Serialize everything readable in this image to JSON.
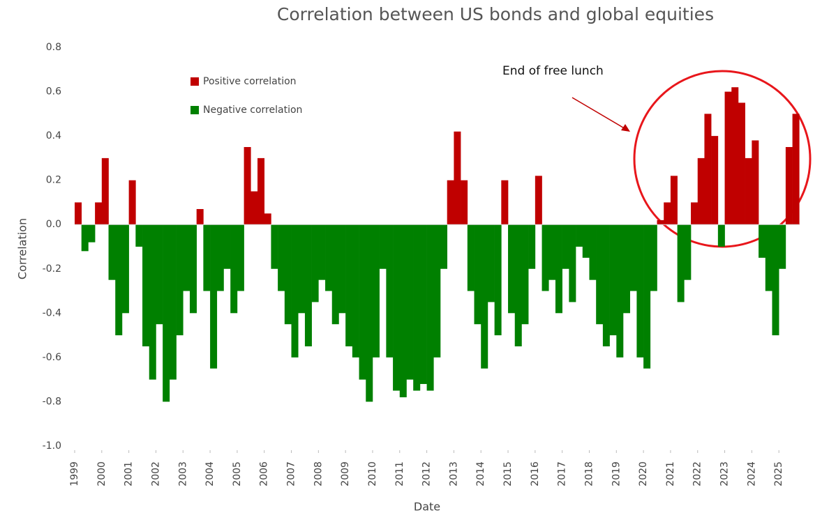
{
  "chart_data": {
    "type": "area",
    "title": "Correlation between US bonds and global equities",
    "x_label": "Date",
    "y_label": "Correlation",
    "annotation": "End of free lunch",
    "legend": [
      {
        "name": "Positive correlation",
        "color": "#c00000"
      },
      {
        "name": "Negative correlation",
        "color": "#008000"
      }
    ],
    "x": [
      1999.0,
      1999.25,
      1999.5,
      1999.75,
      2000.0,
      2000.25,
      2000.5,
      2000.75,
      2001.0,
      2001.25,
      2001.5,
      2001.75,
      2002.0,
      2002.25,
      2002.5,
      2002.75,
      2003.0,
      2003.25,
      2003.5,
      2003.75,
      2004.0,
      2004.25,
      2004.5,
      2004.75,
      2005.0,
      2005.25,
      2005.5,
      2005.75,
      2006.0,
      2006.25,
      2006.5,
      2006.75,
      2007.0,
      2007.25,
      2007.5,
      2007.75,
      2008.0,
      2008.25,
      2008.5,
      2008.75,
      2009.0,
      2009.25,
      2009.5,
      2009.75,
      2010.0,
      2010.25,
      2010.5,
      2010.75,
      2011.0,
      2011.25,
      2011.5,
      2011.75,
      2012.0,
      2012.25,
      2012.5,
      2012.75,
      2013.0,
      2013.25,
      2013.5,
      2013.75,
      2014.0,
      2014.25,
      2014.5,
      2014.75,
      2015.0,
      2015.25,
      2015.5,
      2015.75,
      2016.0,
      2016.25,
      2016.5,
      2016.75,
      2017.0,
      2017.25,
      2017.5,
      2017.75,
      2018.0,
      2018.25,
      2018.5,
      2018.75,
      2019.0,
      2019.25,
      2019.5,
      2019.75,
      2020.0,
      2020.25,
      2020.5,
      2020.75,
      2021.0,
      2021.25,
      2021.5,
      2021.75,
      2022.0,
      2022.25,
      2022.5,
      2022.75,
      2023.0,
      2023.25,
      2023.5,
      2023.75,
      2024.0,
      2024.25,
      2024.5,
      2024.75,
      2025.0,
      2025.25,
      2025.5
    ],
    "values": [
      0.1,
      -0.12,
      -0.08,
      0.1,
      0.3,
      -0.25,
      -0.5,
      -0.4,
      0.2,
      -0.1,
      -0.55,
      -0.7,
      -0.45,
      -0.8,
      -0.7,
      -0.5,
      -0.3,
      -0.4,
      0.07,
      -0.3,
      -0.65,
      -0.3,
      -0.2,
      -0.4,
      -0.3,
      0.35,
      0.15,
      0.3,
      0.05,
      -0.2,
      -0.3,
      -0.45,
      -0.6,
      -0.4,
      -0.55,
      -0.35,
      -0.25,
      -0.3,
      -0.45,
      -0.4,
      -0.55,
      -0.6,
      -0.7,
      -0.8,
      -0.6,
      -0.2,
      -0.6,
      -0.75,
      -0.78,
      -0.7,
      -0.75,
      -0.72,
      -0.75,
      -0.6,
      -0.2,
      0.2,
      0.42,
      0.2,
      -0.3,
      -0.45,
      -0.65,
      -0.35,
      -0.5,
      0.2,
      -0.4,
      -0.55,
      -0.45,
      -0.2,
      0.22,
      -0.3,
      -0.25,
      -0.4,
      -0.2,
      -0.35,
      -0.1,
      -0.15,
      -0.25,
      -0.45,
      -0.55,
      -0.5,
      -0.6,
      -0.4,
      -0.3,
      -0.6,
      -0.65,
      -0.3,
      0.02,
      0.1,
      0.22,
      -0.35,
      -0.25,
      0.1,
      0.3,
      0.5,
      0.4,
      -0.1,
      0.6,
      0.62,
      0.55,
      0.3,
      0.38,
      -0.15,
      -0.3,
      -0.5,
      -0.2,
      0.35,
      0.5
    ],
    "xlim": [
      1999,
      2026
    ],
    "xticks": [
      1999,
      2000,
      2001,
      2002,
      2003,
      2004,
      2005,
      2006,
      2007,
      2008,
      2009,
      2010,
      2011,
      2012,
      2013,
      2014,
      2015,
      2016,
      2017,
      2018,
      2019,
      2020,
      2021,
      2022,
      2023,
      2024,
      2025
    ],
    "ylim": [
      -1,
      0.8
    ],
    "yticks": [
      0.8,
      0.6,
      0.4,
      0.2,
      {
        "value": 0,
        "label": "0.0"
      },
      -0.2,
      -0.4,
      -0.6,
      -0.8,
      {
        "value": -1,
        "label": "-1.0"
      }
    ],
    "grid": false
  }
}
